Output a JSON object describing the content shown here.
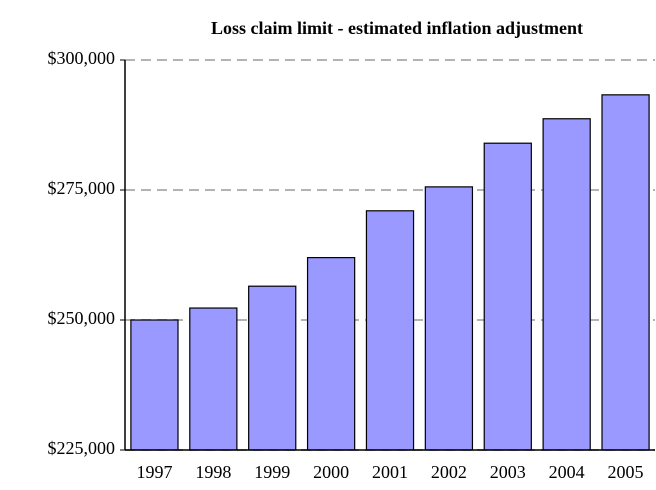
{
  "chart_data": {
    "type": "bar",
    "title": "Loss claim limit - estimated inflation adjustment",
    "categories": [
      "1997",
      "1998",
      "1999",
      "2000",
      "2001",
      "2002",
      "2003",
      "2004",
      "2005"
    ],
    "values": [
      250000,
      252300,
      256500,
      262000,
      271000,
      275600,
      284000,
      288700,
      293300
    ],
    "color": "#9999ff",
    "ylim": [
      225000,
      300000
    ],
    "yticks": [
      {
        "value": 225000,
        "label": "$225,000"
      },
      {
        "value": 250000,
        "label": "$250,000"
      },
      {
        "value": 275000,
        "label": "$275,000"
      },
      {
        "value": 300000,
        "label": "$300,000"
      }
    ],
    "grid": true
  }
}
